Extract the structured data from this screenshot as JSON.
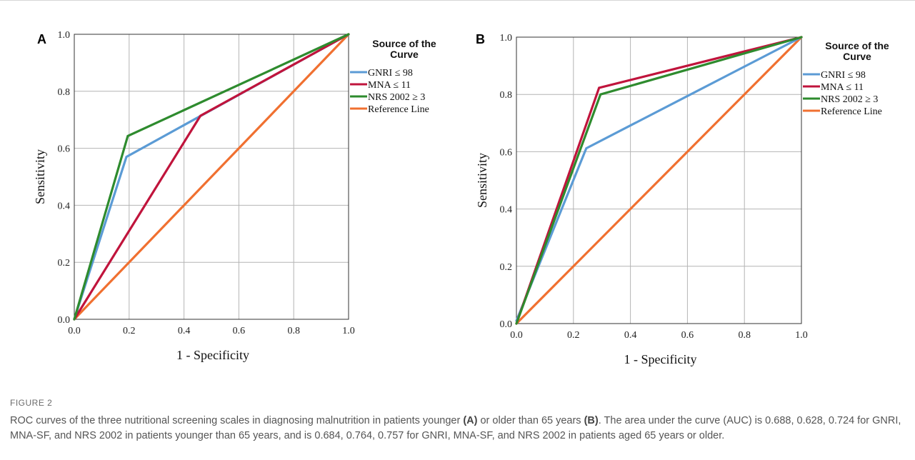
{
  "figure": {
    "label": "FIGURE 2",
    "caption_parts": [
      {
        "text": "ROC curves of the three nutritional screening scales in diagnosing malnutrition in patients younger ",
        "bold": false
      },
      {
        "text": "(A)",
        "bold": true
      },
      {
        "text": " or older than 65 years ",
        "bold": false
      },
      {
        "text": "(B)",
        "bold": true
      },
      {
        "text": ". The area under the curve (AUC) is 0.688, 0.628, 0.724 for GNRI, MNA-SF, and NRS 2002 in patients younger than 65 years, and is 0.684, 0.764, 0.757 for GNRI, MNA-SF, and NRS 2002 in patients aged 65 years or older.",
        "bold": false
      }
    ]
  },
  "colors": {
    "gnri": "#5b9bd5",
    "mna": "#c0143c",
    "nrs": "#2e8b2e",
    "reference": "#f07030",
    "grid": "#b4b4b4",
    "axis": "#333333"
  },
  "chart_data": [
    {
      "type": "line",
      "panel": "A",
      "xlabel": "1 - Specificity",
      "ylabel": "Sensitivity",
      "xlim": [
        0,
        1
      ],
      "ylim": [
        0,
        1
      ],
      "xticks": [
        "0.0",
        "0.2",
        "0.4",
        "0.6",
        "0.8",
        "1.0"
      ],
      "yticks": [
        "0.0",
        "0.2",
        "0.4",
        "0.6",
        "0.8",
        "1.0"
      ],
      "grid": true,
      "legend_title": "Source of the Curve",
      "legend_position": "right",
      "series": [
        {
          "name": "GNRI ≤ 98",
          "color_key": "gnri",
          "points": [
            [
              0,
              0
            ],
            [
              0.19,
              0.57
            ],
            [
              1,
              1
            ]
          ]
        },
        {
          "name": "MNA ≤ 11",
          "color_key": "mna",
          "points": [
            [
              0,
              0
            ],
            [
              0.46,
              0.714
            ],
            [
              1,
              1
            ]
          ]
        },
        {
          "name": "NRS 2002 ≥ 3",
          "color_key": "nrs",
          "points": [
            [
              0,
              0
            ],
            [
              0.195,
              0.643
            ],
            [
              1,
              1
            ]
          ]
        },
        {
          "name": "Reference Line",
          "color_key": "reference",
          "points": [
            [
              0,
              0
            ],
            [
              1,
              1
            ]
          ]
        }
      ]
    },
    {
      "type": "line",
      "panel": "B",
      "xlabel": "1 - Specificity",
      "ylabel": "Sensitivity",
      "xlim": [
        0,
        1
      ],
      "ylim": [
        0,
        1
      ],
      "xticks": [
        "0.0",
        "0.2",
        "0.4",
        "0.6",
        "0.8",
        "1.0"
      ],
      "yticks": [
        "0.0",
        "0.2",
        "0.4",
        "0.6",
        "0.8",
        "1.0"
      ],
      "grid": true,
      "legend_title": "Source of the Curve",
      "legend_position": "right",
      "series": [
        {
          "name": "GNRI ≤ 98",
          "color_key": "gnri",
          "points": [
            [
              0,
              0.01
            ],
            [
              0.245,
              0.612
            ],
            [
              1,
              1
            ]
          ]
        },
        {
          "name": "MNA ≤ 11",
          "color_key": "mna",
          "points": [
            [
              0,
              0
            ],
            [
              0.29,
              0.823
            ],
            [
              1,
              1
            ]
          ]
        },
        {
          "name": "NRS 2002 ≥ 3",
          "color_key": "nrs",
          "points": [
            [
              0,
              0
            ],
            [
              0.295,
              0.8
            ],
            [
              1,
              1
            ]
          ]
        },
        {
          "name": "Reference Line",
          "color_key": "reference",
          "points": [
            [
              0,
              0
            ],
            [
              1,
              1
            ]
          ]
        }
      ]
    }
  ]
}
